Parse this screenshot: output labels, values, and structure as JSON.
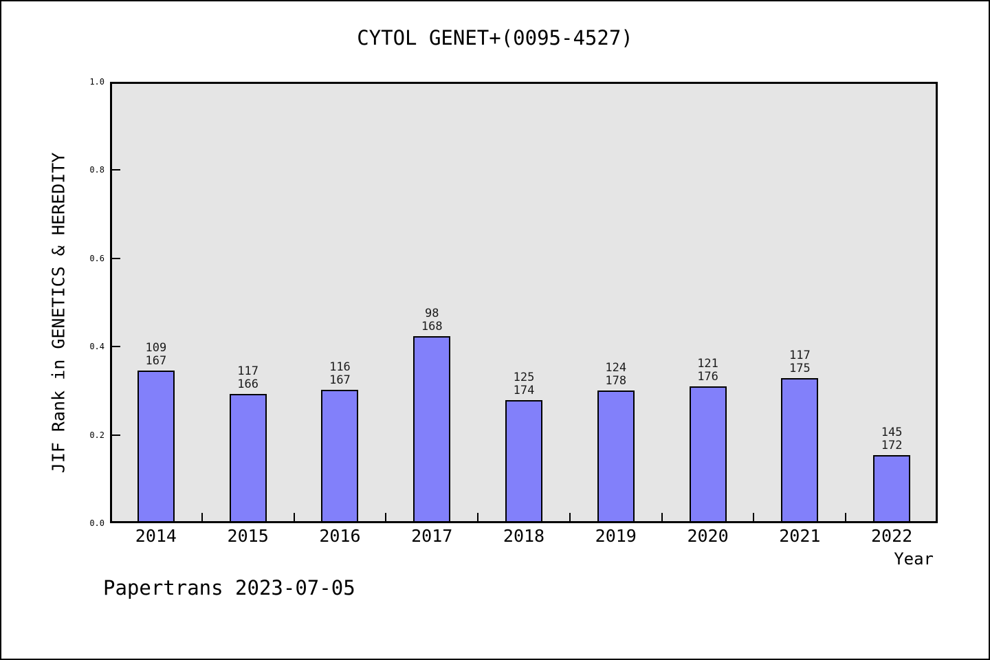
{
  "chart_data": {
    "type": "bar",
    "title": "CYTOL GENET+(0095-4527)",
    "xlabel": "Year",
    "ylabel": "JIF Rank in GENETICS & HEREDITY",
    "footer": "Papertrans 2023-07-05",
    "categories": [
      "2014",
      "2015",
      "2016",
      "2017",
      "2018",
      "2019",
      "2020",
      "2021",
      "2022"
    ],
    "values": [
      0.346,
      0.293,
      0.302,
      0.424,
      0.279,
      0.301,
      0.31,
      0.329,
      0.154
    ],
    "bar_value_labels": [
      [
        "109",
        "167"
      ],
      [
        "117",
        "166"
      ],
      [
        "116",
        "167"
      ],
      [
        "98",
        "168"
      ],
      [
        "125",
        "174"
      ],
      [
        "124",
        "178"
      ],
      [
        "121",
        "176"
      ],
      [
        "117",
        "175"
      ],
      [
        "145",
        "172"
      ]
    ],
    "ylim": [
      0.0,
      1.0
    ],
    "yticks": [
      "0.0",
      "0.2",
      "0.4",
      "0.6",
      "0.8",
      "1.0"
    ],
    "grid": false,
    "legend": "none",
    "colors": {
      "bar_fill": "#8280fa",
      "bar_edge": "#000000",
      "plot_background": "#e5e5e5",
      "page_background": "#ffffff",
      "frame": "#000000"
    }
  }
}
